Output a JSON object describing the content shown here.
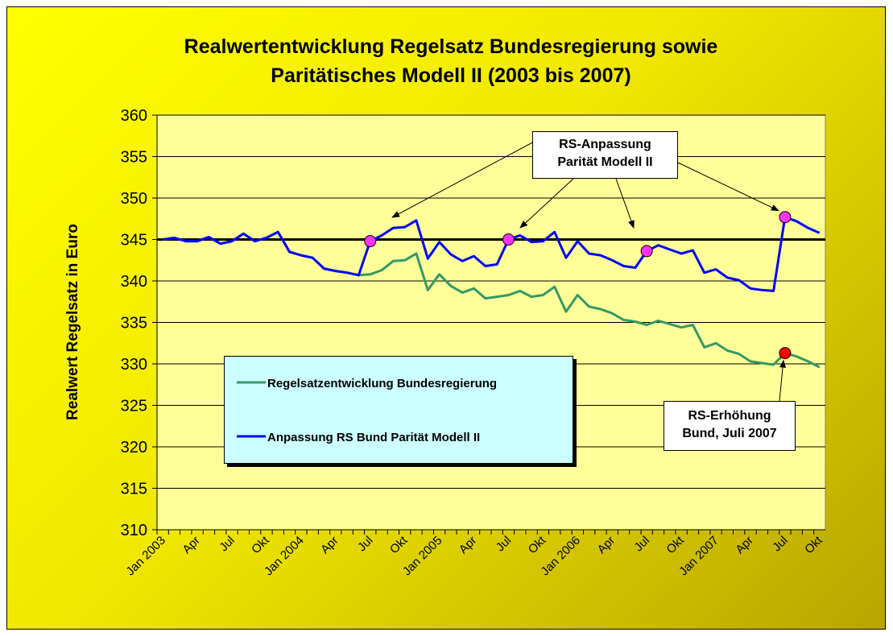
{
  "chart_data": {
    "type": "line",
    "title": "Realwertentwicklung Regelsatz Bundesregierung sowie Paritätisches Modell II (2003 bis 2007)",
    "y_label": "Realwert Regelsatz in Euro",
    "categories": [
      "Jan 2003",
      null,
      null,
      "Apr",
      null,
      null,
      "Jul",
      null,
      null,
      "Okt",
      null,
      null,
      "Jan 2004",
      null,
      null,
      "Apr",
      null,
      null,
      "Jul",
      null,
      null,
      "Okt",
      null,
      null,
      "Jan 2005",
      null,
      null,
      "Apr",
      null,
      null,
      "Jul",
      null,
      null,
      "Okt",
      null,
      null,
      "Jan 2006",
      null,
      null,
      "Apr",
      null,
      null,
      "Jul",
      null,
      null,
      "Okt",
      null,
      null,
      "Jan 2007",
      null,
      null,
      "Apr",
      null,
      null,
      "Jul",
      null,
      null,
      "Okt"
    ],
    "ylim": [
      310,
      360
    ],
    "yticks": [
      310,
      315,
      320,
      325,
      330,
      335,
      340,
      345,
      350,
      355,
      360
    ],
    "grid": true,
    "reference_line": 345,
    "series": [
      {
        "name": "Regelsatzentwicklung Bundesregierung",
        "color": "#339966",
        "values": [
          345,
          345.2,
          344.8,
          344.8,
          345.3,
          344.5,
          344.8,
          345.7,
          344.8,
          345.2,
          345.9,
          343.5,
          343.1,
          342.8,
          341.5,
          341.2,
          341,
          340.7,
          340.8,
          341.3,
          342.4,
          342.5,
          343.3,
          338.9,
          340.8,
          339.4,
          338.6,
          339.1,
          337.9,
          338.1,
          338.3,
          338.8,
          338.1,
          338.3,
          339.3,
          336.3,
          338.3,
          336.9,
          336.6,
          336.1,
          335.3,
          335.1,
          334.7,
          335.2,
          334.8,
          334.4,
          334.7,
          332,
          332.5,
          331.6,
          331.2,
          330.3,
          330.1,
          329.9,
          331.3,
          330.9,
          330.3,
          329.6
        ]
      },
      {
        "name": "Anpassung RS Bund Parität Modell II",
        "color": "#0000ff",
        "values": [
          345,
          345.2,
          344.8,
          344.8,
          345.3,
          344.5,
          344.8,
          345.7,
          344.8,
          345.2,
          345.9,
          343.5,
          343.1,
          342.8,
          341.5,
          341.2,
          341,
          340.7,
          344.8,
          345.5,
          346.4,
          346.5,
          347.3,
          342.7,
          344.7,
          343.2,
          342.4,
          343,
          341.8,
          342,
          345,
          345.5,
          344.7,
          344.8,
          345.9,
          342.8,
          344.8,
          343.3,
          343.1,
          342.5,
          341.8,
          341.6,
          343.6,
          344.3,
          343.8,
          343.3,
          343.7,
          341,
          341.4,
          340.4,
          340.1,
          339.1,
          338.9,
          338.8,
          347.7,
          347.2,
          346.4,
          345.8
        ]
      }
    ],
    "markers": [
      {
        "series": 1,
        "index": 18,
        "color": "#ff33ff"
      },
      {
        "series": 1,
        "index": 30,
        "color": "#ff33ff"
      },
      {
        "series": 1,
        "index": 42,
        "color": "#ff33ff"
      },
      {
        "series": 1,
        "index": 54,
        "color": "#ff33ff"
      },
      {
        "series": 0,
        "index": 54,
        "color": "#ff0000"
      }
    ],
    "annotations": [
      "RS-Anpassung Parität Modell II",
      "RS-Erhöhung Bund, Juli 2007"
    ]
  }
}
